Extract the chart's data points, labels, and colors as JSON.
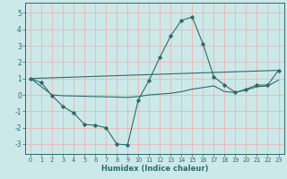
{
  "xlabel": "Humidex (Indice chaleur)",
  "xlim": [
    -0.5,
    23.5
  ],
  "ylim": [
    -3.6,
    5.6
  ],
  "yticks": [
    -3,
    -2,
    -1,
    0,
    1,
    2,
    3,
    4,
    5
  ],
  "xticks": [
    0,
    1,
    2,
    3,
    4,
    5,
    6,
    7,
    8,
    9,
    10,
    11,
    12,
    13,
    14,
    15,
    16,
    17,
    18,
    19,
    20,
    21,
    22,
    23
  ],
  "bg_color": "#cce8e8",
  "line_color": "#2d6b6b",
  "grid_color": "#e8b8b8",
  "lines": [
    {
      "x": [
        0,
        1,
        2,
        3,
        4,
        5,
        6,
        7,
        8,
        9,
        10,
        11,
        12,
        13,
        14,
        15,
        16,
        17,
        18,
        19,
        20,
        21,
        22,
        23
      ],
      "y": [
        1.0,
        0.75,
        -0.05,
        -0.7,
        -1.1,
        -1.8,
        -1.85,
        -2.0,
        -3.0,
        -3.05,
        -0.3,
        0.9,
        2.3,
        3.6,
        4.55,
        4.75,
        3.1,
        1.1,
        0.6,
        0.15,
        0.35,
        0.6,
        0.6,
        1.5
      ],
      "marker": true
    },
    {
      "x": [
        0,
        23
      ],
      "y": [
        1.0,
        1.5
      ],
      "marker": false
    },
    {
      "x": [
        0,
        2,
        3,
        9,
        10,
        11,
        12,
        13,
        14,
        15,
        16,
        17,
        18,
        19,
        20,
        21,
        22,
        23
      ],
      "y": [
        1.0,
        0.0,
        -0.05,
        -0.15,
        -0.1,
        0.0,
        0.05,
        0.1,
        0.2,
        0.35,
        0.45,
        0.55,
        0.2,
        0.15,
        0.3,
        0.5,
        0.55,
        0.9
      ],
      "marker": false
    }
  ]
}
